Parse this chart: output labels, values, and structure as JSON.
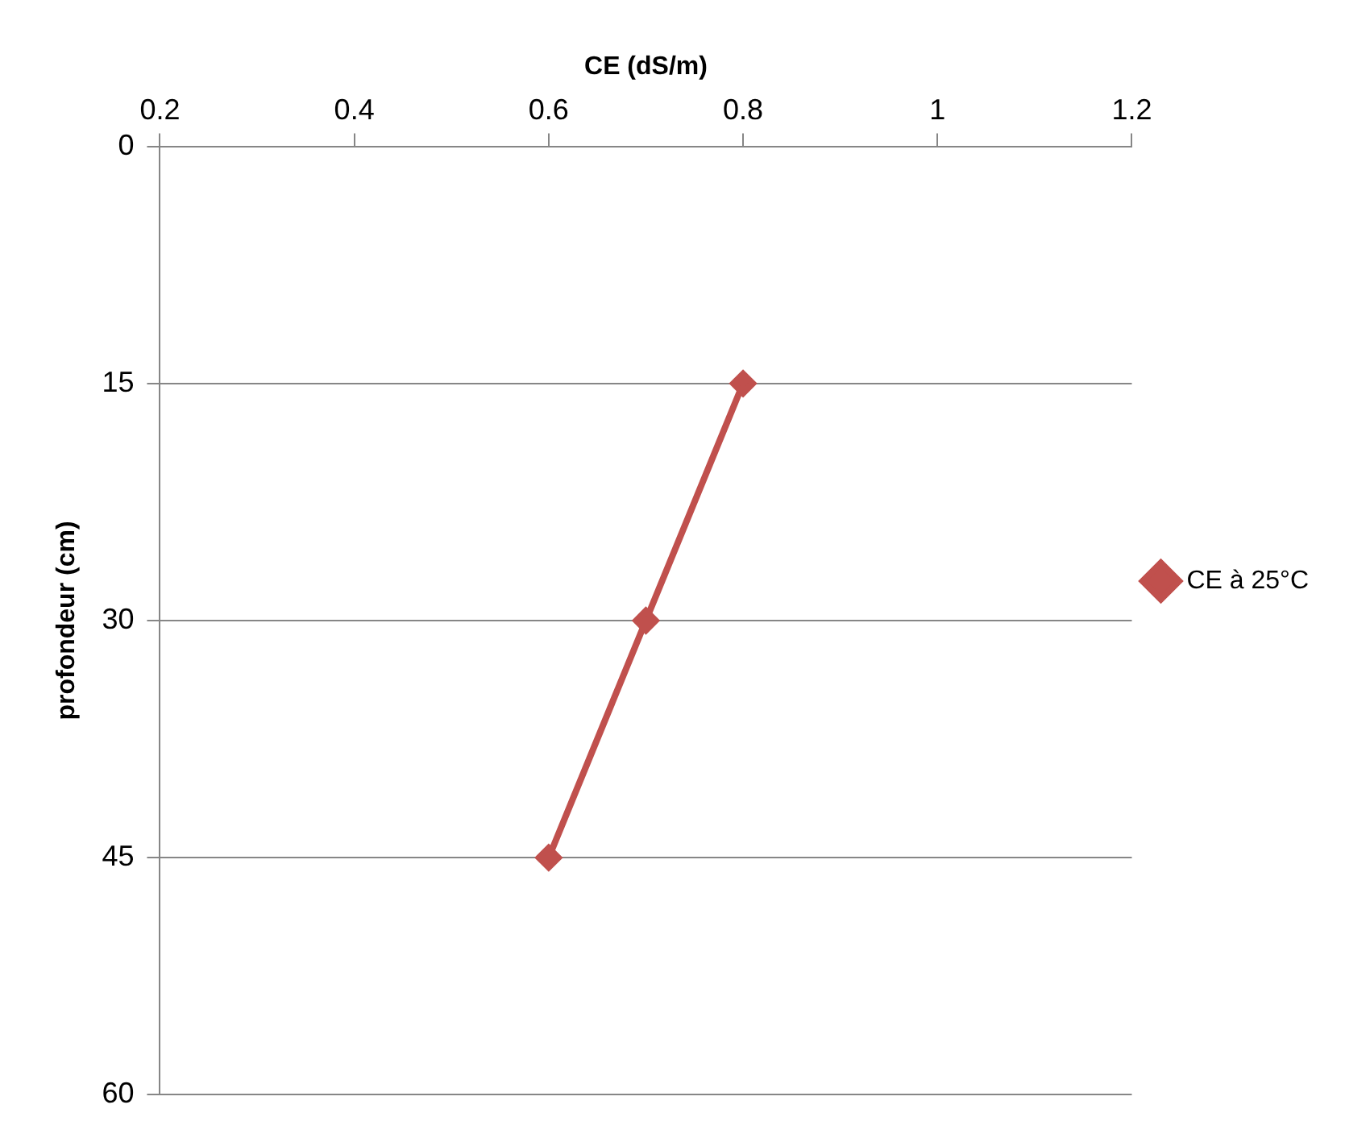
{
  "chart_data": {
    "type": "line",
    "xlabel": "CE (dS/m)",
    "ylabel": "profondeur (cm)",
    "xlim": [
      0.2,
      1.2
    ],
    "xticks": [
      0.2,
      0.4,
      0.6,
      0.8,
      1,
      1.2
    ],
    "ylim": [
      60,
      0
    ],
    "yticks": [
      0,
      15,
      30,
      45,
      60
    ],
    "series": [
      {
        "name": "CE à 25°C",
        "color": "#c0504d",
        "x": [
          0.8,
          0.7,
          0.6
        ],
        "values": [
          15,
          30,
          45
        ]
      }
    ],
    "grid": "y",
    "legend": "right",
    "marker": "diamond",
    "line_style": "solid"
  }
}
